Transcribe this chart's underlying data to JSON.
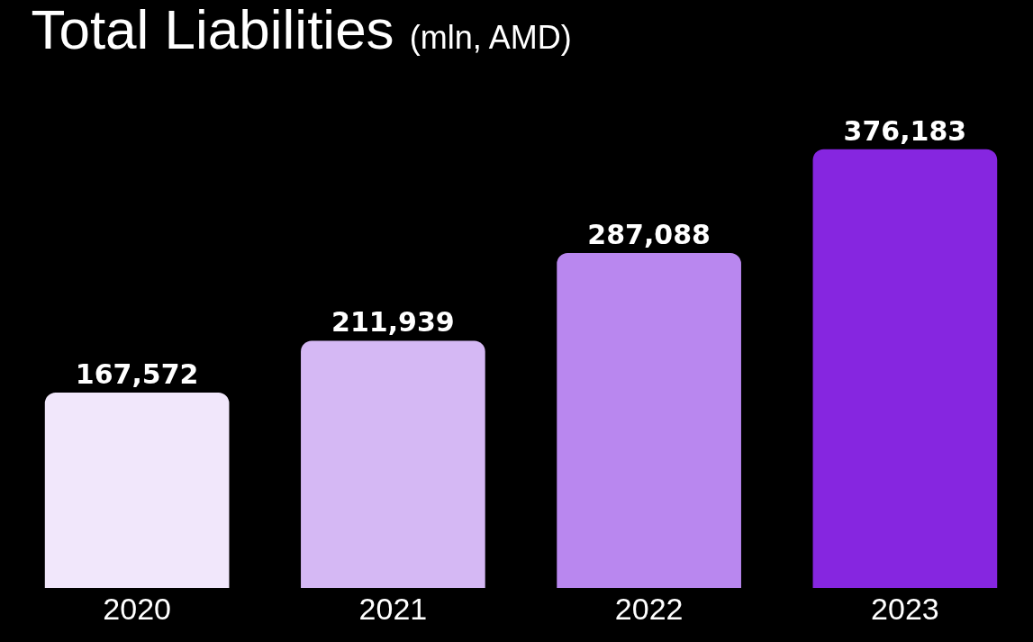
{
  "chart_data": {
    "type": "bar",
    "title": "Total Liabilities",
    "subtitle": "(mln, AMD)",
    "categories": [
      "2020",
      "2021",
      "2022",
      "2023"
    ],
    "values": [
      167572,
      211939,
      287088,
      376183
    ],
    "colors": [
      "#f1e7fb",
      "#d5b8f4",
      "#b987ef",
      "#8626e0"
    ],
    "value_labels": [
      "167,572",
      "211,939",
      "287,088",
      "376,183"
    ]
  }
}
